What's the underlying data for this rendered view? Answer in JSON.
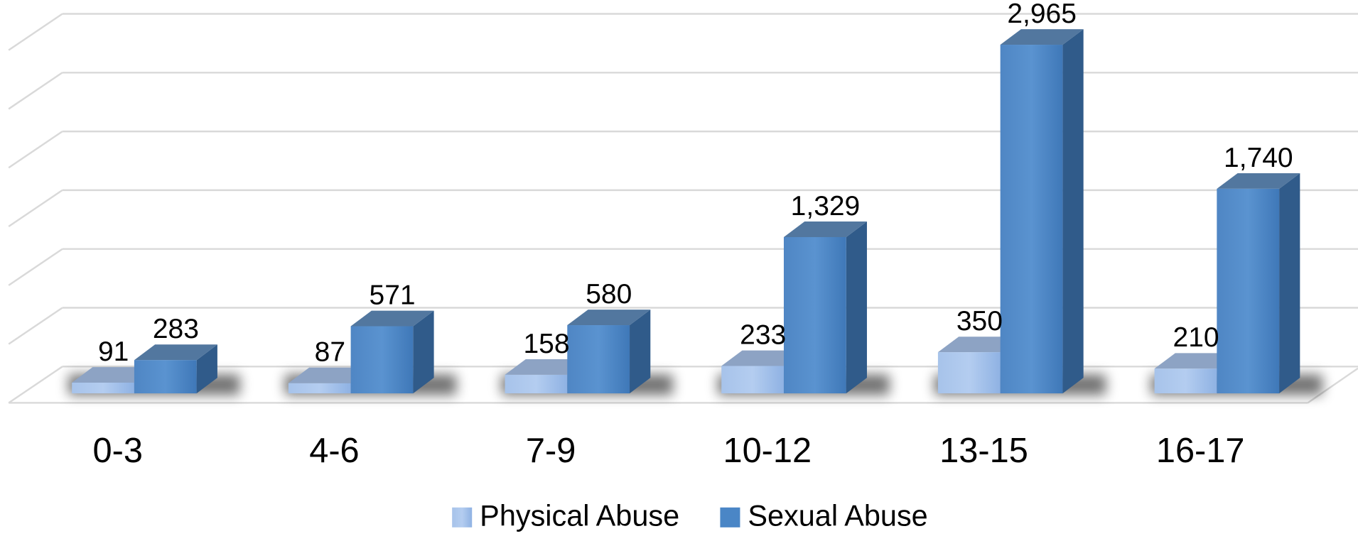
{
  "chart_data": {
    "type": "bar3d",
    "categories": [
      "0-3",
      "4-6",
      "7-9",
      "10-12",
      "13-15",
      "16-17"
    ],
    "series": [
      {
        "name": "Physical Abuse",
        "color": "#8fb2e3",
        "values": [
          91,
          87,
          158,
          233,
          350,
          210
        ]
      },
      {
        "name": "Sexual Abuse",
        "color": "#4a86c6",
        "values": [
          283,
          571,
          580,
          1329,
          2965,
          1740
        ],
        "value_labels": [
          "283",
          "571",
          "580",
          "1,329",
          "2,965",
          "1,740"
        ]
      }
    ],
    "ylim": [
      0,
      3000
    ],
    "yticks": [
      0,
      500,
      1000,
      1500,
      2000,
      2500,
      3000
    ],
    "grid": true,
    "legend": "bottom"
  }
}
